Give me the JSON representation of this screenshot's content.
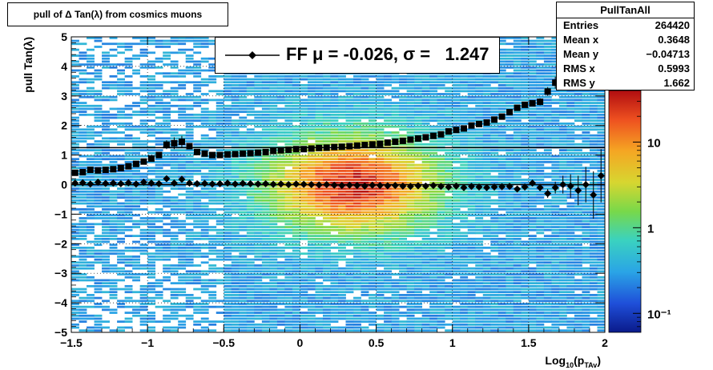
{
  "title": "pull of Δ Tan(λ) from cosmics muons",
  "stats": {
    "name": "PullTanAll",
    "rows": [
      {
        "label": "Entries",
        "value": "264420"
      },
      {
        "label": "Mean x",
        "value": "0.3648"
      },
      {
        "label": "Mean y",
        "value": "−0.04713"
      },
      {
        "label": "RMS x",
        "value": "0.5993"
      },
      {
        "label": "RMS y",
        "value": "1.662"
      }
    ]
  },
  "legend": {
    "text": "FF μ = -0.026, σ =   1.247"
  },
  "chart_data": {
    "type": "heatmap",
    "title": "pull of Δ Tan(λ) from cosmics muons",
    "xlabel": "Log10(pTAv)",
    "ylabel": "pull Tan(λ)",
    "xlim": [
      -1.5,
      2.0
    ],
    "ylim": [
      -5,
      5
    ],
    "zscale": "log",
    "xticks": [
      "−1.5",
      "−1",
      "−0.5",
      "0",
      "0.5",
      "1",
      "1.5",
      "2"
    ],
    "yticks": [
      "5",
      "4",
      "3",
      "2",
      "1",
      "0",
      "−1",
      "−2",
      "−3",
      "−4",
      "−5"
    ],
    "zticks": [
      {
        "label": "10",
        "value": 10
      },
      {
        "label": "1",
        "value": 1
      },
      {
        "label": "10⁻¹",
        "value": 0.1
      }
    ],
    "horizontal_lines": [
      1.25,
      0
    ],
    "series": [
      {
        "name": "RMS",
        "x": [
          -1.475,
          -1.425,
          -1.375,
          -1.325,
          -1.275,
          -1.225,
          -1.175,
          -1.125,
          -1.075,
          -1.025,
          -0.975,
          -0.925,
          -0.875,
          -0.825,
          -0.775,
          -0.725,
          -0.675,
          -0.625,
          -0.575,
          -0.525,
          -0.475,
          -0.425,
          -0.375,
          -0.325,
          -0.275,
          -0.225,
          -0.175,
          -0.125,
          -0.075,
          -0.025,
          0.025,
          0.075,
          0.125,
          0.175,
          0.225,
          0.275,
          0.325,
          0.375,
          0.425,
          0.475,
          0.525,
          0.575,
          0.625,
          0.675,
          0.725,
          0.775,
          0.825,
          0.875,
          0.925,
          0.975,
          1.025,
          1.075,
          1.125,
          1.175,
          1.225,
          1.275,
          1.325,
          1.375,
          1.425,
          1.475,
          1.525,
          1.575,
          1.625,
          1.675,
          1.725
        ],
        "y": [
          0.4,
          0.42,
          0.5,
          0.48,
          0.5,
          0.52,
          0.56,
          0.62,
          0.7,
          0.78,
          0.88,
          1.0,
          1.35,
          1.4,
          1.45,
          1.3,
          1.1,
          1.05,
          1.0,
          1.0,
          1.02,
          1.03,
          1.05,
          1.06,
          1.08,
          1.1,
          1.14,
          1.16,
          1.18,
          1.2,
          1.2,
          1.22,
          1.24,
          1.25,
          1.27,
          1.28,
          1.3,
          1.32,
          1.34,
          1.36,
          1.38,
          1.42,
          1.45,
          1.48,
          1.52,
          1.56,
          1.6,
          1.65,
          1.7,
          1.8,
          1.85,
          1.9,
          2.0,
          2.05,
          2.1,
          2.2,
          2.3,
          2.45,
          2.6,
          2.7,
          2.75,
          2.8,
          3.15,
          3.45,
          3.8
        ],
        "yerr": [
          0.05,
          0.05,
          0.05,
          0.05,
          0.05,
          0.05,
          0.05,
          0.05,
          0.05,
          0.05,
          0.06,
          0.06,
          0.15,
          0.2,
          0.2,
          0.1,
          0.05,
          0.04,
          0.03,
          0.03,
          0.03,
          0.03,
          0.03,
          0.03,
          0.03,
          0.03,
          0.03,
          0.03,
          0.03,
          0.03,
          0.03,
          0.03,
          0.03,
          0.03,
          0.03,
          0.03,
          0.03,
          0.03,
          0.03,
          0.03,
          0.03,
          0.03,
          0.03,
          0.03,
          0.03,
          0.03,
          0.03,
          0.03,
          0.04,
          0.04,
          0.04,
          0.04,
          0.05,
          0.05,
          0.05,
          0.05,
          0.06,
          0.06,
          0.07,
          0.08,
          0.1,
          0.12,
          0.15,
          0.2,
          0.25
        ]
      },
      {
        "name": "Mean",
        "x": [
          -1.475,
          -1.425,
          -1.375,
          -1.325,
          -1.275,
          -1.225,
          -1.175,
          -1.125,
          -1.075,
          -1.025,
          -0.975,
          -0.925,
          -0.875,
          -0.825,
          -0.775,
          -0.725,
          -0.675,
          -0.625,
          -0.575,
          -0.525,
          -0.475,
          -0.425,
          -0.375,
          -0.325,
          -0.275,
          -0.225,
          -0.175,
          -0.125,
          -0.075,
          -0.025,
          0.025,
          0.075,
          0.125,
          0.175,
          0.225,
          0.275,
          0.325,
          0.375,
          0.425,
          0.475,
          0.525,
          0.575,
          0.625,
          0.675,
          0.725,
          0.775,
          0.825,
          0.875,
          0.925,
          0.975,
          1.025,
          1.075,
          1.125,
          1.175,
          1.225,
          1.275,
          1.325,
          1.375,
          1.425,
          1.475,
          1.525,
          1.575,
          1.625,
          1.675,
          1.725,
          1.775,
          1.825,
          1.875,
          1.925,
          1.975
        ],
        "y": [
          0.05,
          0.06,
          0.02,
          0.08,
          0.04,
          0.05,
          0.03,
          0.06,
          0.02,
          0.08,
          0.05,
          0.03,
          0.2,
          0.05,
          0.18,
          0.05,
          0.03,
          0.04,
          0.02,
          0.03,
          0.05,
          0.02,
          0.04,
          0.03,
          0.02,
          0.03,
          0.01,
          0.02,
          0.0,
          0.02,
          0.01,
          0.0,
          -0.01,
          0.0,
          -0.02,
          -0.03,
          -0.02,
          -0.03,
          -0.05,
          -0.02,
          -0.03,
          -0.04,
          -0.03,
          -0.05,
          -0.06,
          -0.04,
          -0.05,
          -0.03,
          -0.06,
          -0.08,
          -0.05,
          -0.1,
          -0.06,
          -0.08,
          -0.1,
          -0.08,
          -0.07,
          -0.06,
          -0.15,
          -0.08,
          0.05,
          -0.1,
          -0.3,
          -0.1,
          0.0,
          -0.05,
          -0.2,
          0.0,
          -0.35,
          0.3
        ],
        "yerr": [
          0.05,
          0.05,
          0.04,
          0.04,
          0.04,
          0.04,
          0.04,
          0.04,
          0.04,
          0.04,
          0.04,
          0.05,
          0.08,
          0.1,
          0.12,
          0.08,
          0.04,
          0.03,
          0.02,
          0.02,
          0.02,
          0.02,
          0.02,
          0.02,
          0.02,
          0.02,
          0.02,
          0.02,
          0.02,
          0.02,
          0.02,
          0.02,
          0.02,
          0.02,
          0.02,
          0.02,
          0.02,
          0.02,
          0.02,
          0.02,
          0.02,
          0.02,
          0.02,
          0.02,
          0.02,
          0.02,
          0.02,
          0.03,
          0.03,
          0.03,
          0.03,
          0.04,
          0.04,
          0.05,
          0.05,
          0.05,
          0.06,
          0.06,
          0.07,
          0.08,
          0.1,
          0.12,
          0.15,
          0.2,
          0.3,
          0.4,
          0.5,
          0.6,
          0.8,
          0.9
        ]
      }
    ]
  }
}
